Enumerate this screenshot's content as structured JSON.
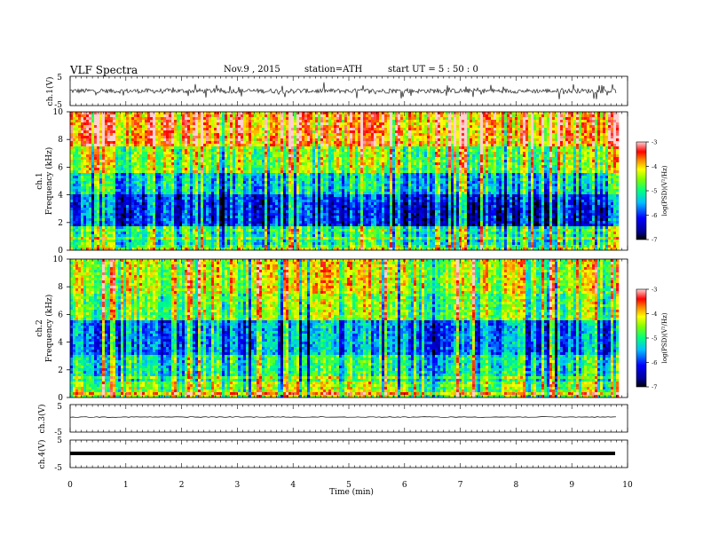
{
  "header": {
    "title": "VLF  Spectra",
    "date": "Nov.9  , 2015",
    "station": "station=ATH",
    "start": "start  UT  =   5  : 50 : 0"
  },
  "chart_data": [
    {
      "type": "line",
      "panel": "ch1-waveform",
      "ylabel": "ch.1(V)",
      "ylim": [
        -5,
        5
      ],
      "yticks": [
        5,
        -5
      ],
      "xlim": [
        0,
        10
      ],
      "description_values": {
        "mean": 0,
        "approx_amplitude_V": 1.2
      }
    },
    {
      "type": "heatmap",
      "panel": "ch1-spectrogram",
      "ylabel": "ch.1\nFrequency (kHz)",
      "ylabel_top": "ch.1",
      "ylabel_bottom": "Frequency  (kHz)",
      "ylim": [
        0,
        10
      ],
      "yticks": [
        0,
        2,
        4,
        6,
        8,
        10
      ],
      "xlim": [
        0,
        9.8
      ],
      "colorbar": {
        "label": "log(PSD)(V²/Hz)",
        "range": [
          -7,
          -3
        ],
        "ticks": [
          -3,
          -4,
          -5,
          -6,
          -7
        ]
      }
    },
    {
      "type": "heatmap",
      "panel": "ch2-spectrogram",
      "ylabel_top": "ch.2",
      "ylabel_bottom": "Frequency  (kHz)",
      "ylim": [
        0,
        10
      ],
      "yticks": [
        0,
        2,
        4,
        6,
        8,
        10
      ],
      "xlim": [
        0,
        9.8
      ],
      "colorbar": {
        "label": "log(PSD)(V²/Hz)",
        "range": [
          -7,
          -3
        ],
        "ticks": [
          -3,
          -4,
          -5,
          -6,
          -7
        ]
      }
    },
    {
      "type": "line",
      "panel": "ch3-waveform",
      "ylabel": "ch.3(V)",
      "ylim": [
        -5,
        5
      ],
      "yticks": [
        5,
        -5
      ],
      "description_values": {
        "mean": 0
      }
    },
    {
      "type": "line",
      "panel": "ch4-waveform",
      "ylabel": "ch.4(V)",
      "ylim": [
        -5,
        5
      ],
      "yticks": [
        5,
        -5
      ],
      "description_values": {
        "mean": 0
      }
    }
  ],
  "xaxis": {
    "label": "Time  (min)",
    "ticks": [
      "0",
      "1",
      "2",
      "3",
      "4",
      "5",
      "6",
      "7",
      "8",
      "9",
      "10"
    ],
    "range": [
      0,
      10
    ]
  },
  "colors": {
    "spectral": [
      "#000070",
      "#0000ff",
      "#0080ff",
      "#00ffff",
      "#00ff80",
      "#00ff00",
      "#80ff00",
      "#ffff00",
      "#ff8000",
      "#ff0000",
      "#ffffff"
    ]
  }
}
